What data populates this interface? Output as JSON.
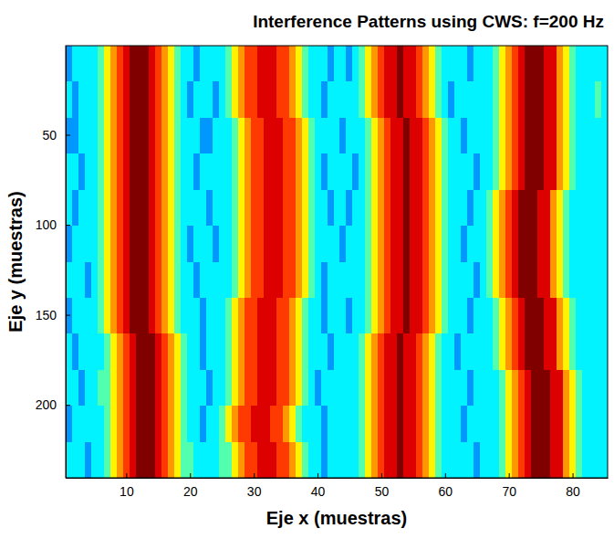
{
  "chart_data": {
    "type": "heatmap",
    "title": "Interference Patterns using CWS: f=200 Hz",
    "x_label": "Eje x (muestras)",
    "y_label": "Eje y (muestras)",
    "color": "jet",
    "zlim": [
      0,
      11
    ],
    "xlim": [
      0.5,
      85.5
    ],
    "ylim": [
      0.5,
      240.5
    ],
    "xticks": [
      10,
      20,
      30,
      40,
      50,
      60,
      70,
      80
    ],
    "yticks": [
      50,
      100,
      150,
      200
    ],
    "x": [
      1,
      2,
      3,
      4,
      5,
      6,
      7,
      8,
      9,
      10,
      11,
      12,
      13,
      14,
      15,
      16,
      17,
      18,
      19,
      20,
      21,
      22,
      23,
      24,
      25,
      26,
      27,
      28,
      29,
      30,
      31,
      32,
      33,
      34,
      35,
      36,
      37,
      38,
      39,
      40,
      41,
      42,
      43,
      44,
      45,
      46,
      47,
      48,
      49,
      50,
      51,
      52,
      53,
      54,
      55,
      56,
      57,
      58,
      59,
      60,
      61,
      62,
      63,
      64,
      65,
      66,
      67,
      68,
      69,
      70,
      71,
      72,
      73,
      74,
      75,
      76,
      77,
      78,
      79,
      80,
      81,
      82,
      83,
      84,
      85
    ],
    "y": [
      10.5,
      30.5,
      50.5,
      70.5,
      90.5,
      110.5,
      130.5,
      150.5,
      170.5,
      190.5,
      210.5,
      230.5
    ],
    "cells": [
      [
        3,
        4,
        4,
        4,
        4,
        5,
        7,
        8,
        9,
        10,
        11,
        11,
        11,
        10,
        9,
        8,
        7,
        5,
        4,
        4,
        3,
        4,
        4,
        4,
        4,
        5,
        7,
        8,
        9,
        9,
        10,
        10,
        10,
        9,
        9,
        8,
        7,
        5,
        4,
        4,
        4,
        3,
        4,
        4,
        3,
        4,
        5,
        7,
        8,
        9,
        10,
        10,
        11,
        10,
        10,
        9,
        8,
        7,
        5,
        4,
        4,
        4,
        4,
        3,
        4,
        4,
        4,
        5,
        7,
        8,
        9,
        10,
        11,
        11,
        11,
        10,
        10,
        8,
        7,
        5,
        4,
        4,
        4,
        4,
        4
      ],
      [
        4,
        3,
        4,
        4,
        4,
        5,
        7,
        8,
        9,
        10,
        11,
        11,
        11,
        10,
        9,
        8,
        7,
        5,
        4,
        3,
        4,
        4,
        4,
        3,
        4,
        5,
        7,
        8,
        9,
        9,
        10,
        10,
        10,
        9,
        9,
        8,
        7,
        5,
        4,
        4,
        3,
        4,
        4,
        4,
        4,
        4,
        5,
        7,
        8,
        9,
        10,
        10,
        11,
        10,
        10,
        9,
        8,
        7,
        5,
        4,
        3,
        4,
        4,
        4,
        4,
        4,
        4,
        5,
        7,
        8,
        9,
        10,
        11,
        11,
        11,
        10,
        10,
        8,
        7,
        5,
        4,
        4,
        4,
        5,
        4
      ],
      [
        3,
        3,
        4,
        4,
        4,
        5,
        7,
        8,
        9,
        10,
        11,
        11,
        11,
        10,
        9,
        8,
        7,
        5,
        4,
        4,
        4,
        3,
        3,
        4,
        4,
        4,
        5,
        7,
        8,
        9,
        9,
        10,
        10,
        10,
        9,
        9,
        8,
        7,
        5,
        4,
        4,
        4,
        4,
        3,
        4,
        4,
        4,
        5,
        7,
        8,
        9,
        10,
        10,
        11,
        10,
        10,
        9,
        8,
        7,
        5,
        4,
        4,
        3,
        4,
        4,
        4,
        4,
        5,
        7,
        8,
        9,
        10,
        11,
        11,
        11,
        10,
        10,
        8,
        7,
        5,
        4,
        4,
        4,
        4,
        4
      ],
      [
        4,
        4,
        3,
        4,
        4,
        5,
        7,
        8,
        9,
        10,
        11,
        11,
        11,
        10,
        9,
        8,
        7,
        5,
        4,
        4,
        3,
        4,
        4,
        4,
        4,
        4,
        5,
        7,
        8,
        9,
        9,
        10,
        10,
        10,
        9,
        9,
        8,
        7,
        5,
        4,
        3,
        4,
        4,
        4,
        4,
        3,
        4,
        5,
        7,
        8,
        9,
        10,
        10,
        11,
        10,
        10,
        9,
        8,
        7,
        5,
        4,
        4,
        4,
        4,
        3,
        4,
        4,
        5,
        7,
        8,
        9,
        10,
        11,
        11,
        11,
        10,
        10,
        8,
        7,
        5,
        4,
        4,
        4,
        4,
        4
      ],
      [
        4,
        3,
        4,
        4,
        4,
        5,
        7,
        8,
        9,
        10,
        11,
        11,
        11,
        10,
        9,
        8,
        7,
        5,
        4,
        4,
        4,
        4,
        3,
        4,
        4,
        4,
        5,
        7,
        8,
        9,
        9,
        10,
        10,
        10,
        9,
        9,
        8,
        7,
        5,
        4,
        4,
        3,
        4,
        4,
        3,
        4,
        4,
        5,
        7,
        8,
        9,
        10,
        10,
        11,
        10,
        10,
        9,
        8,
        7,
        5,
        4,
        4,
        4,
        3,
        4,
        4,
        5,
        7,
        8,
        9,
        10,
        11,
        11,
        11,
        10,
        10,
        8,
        7,
        5,
        4,
        4,
        4,
        4,
        4,
        4
      ],
      [
        3,
        4,
        4,
        4,
        4,
        5,
        7,
        8,
        9,
        10,
        11,
        11,
        11,
        10,
        9,
        8,
        7,
        5,
        4,
        3,
        4,
        4,
        4,
        3,
        4,
        4,
        5,
        7,
        8,
        9,
        9,
        10,
        10,
        10,
        9,
        9,
        8,
        7,
        5,
        4,
        4,
        4,
        4,
        3,
        4,
        4,
        4,
        5,
        7,
        8,
        9,
        10,
        10,
        11,
        10,
        10,
        9,
        8,
        7,
        5,
        4,
        4,
        3,
        4,
        4,
        4,
        5,
        7,
        8,
        9,
        10,
        11,
        11,
        11,
        10,
        10,
        8,
        7,
        5,
        4,
        4,
        4,
        4,
        4,
        4
      ],
      [
        4,
        4,
        4,
        3,
        4,
        5,
        7,
        8,
        9,
        10,
        11,
        11,
        11,
        10,
        9,
        8,
        7,
        5,
        4,
        4,
        3,
        4,
        4,
        4,
        4,
        4,
        5,
        7,
        8,
        9,
        9,
        10,
        10,
        10,
        9,
        9,
        8,
        7,
        5,
        4,
        3,
        4,
        4,
        4,
        4,
        4,
        4,
        5,
        7,
        8,
        9,
        10,
        10,
        11,
        10,
        10,
        9,
        8,
        7,
        5,
        4,
        4,
        4,
        4,
        3,
        4,
        5,
        7,
        8,
        9,
        10,
        11,
        11,
        11,
        10,
        10,
        8,
        7,
        5,
        4,
        4,
        4,
        4,
        4,
        4
      ],
      [
        3,
        4,
        4,
        4,
        4,
        5,
        7,
        8,
        9,
        10,
        11,
        11,
        11,
        10,
        9,
        8,
        7,
        5,
        4,
        4,
        4,
        3,
        4,
        4,
        4,
        5,
        7,
        8,
        9,
        9,
        10,
        10,
        10,
        9,
        9,
        8,
        7,
        5,
        4,
        4,
        3,
        4,
        4,
        4,
        3,
        4,
        4,
        5,
        7,
        8,
        9,
        10,
        10,
        11,
        10,
        10,
        9,
        8,
        7,
        5,
        4,
        4,
        4,
        3,
        4,
        4,
        4,
        5,
        7,
        8,
        9,
        10,
        11,
        11,
        11,
        10,
        10,
        8,
        7,
        5,
        4,
        4,
        4,
        4,
        4
      ],
      [
        4,
        3,
        4,
        4,
        4,
        4,
        5,
        7,
        8,
        9,
        10,
        11,
        11,
        11,
        10,
        9,
        8,
        7,
        5,
        4,
        4,
        3,
        4,
        4,
        4,
        5,
        7,
        8,
        9,
        9,
        10,
        10,
        10,
        9,
        9,
        8,
        7,
        5,
        4,
        4,
        4,
        3,
        4,
        4,
        4,
        4,
        5,
        7,
        8,
        9,
        10,
        10,
        11,
        10,
        10,
        9,
        8,
        7,
        5,
        4,
        4,
        3,
        4,
        4,
        4,
        4,
        4,
        5,
        7,
        8,
        9,
        10,
        11,
        11,
        11,
        10,
        10,
        8,
        7,
        5,
        4,
        4,
        4,
        4,
        4
      ],
      [
        4,
        4,
        3,
        4,
        4,
        5,
        5,
        7,
        8,
        9,
        10,
        11,
        11,
        11,
        10,
        9,
        8,
        7,
        5,
        4,
        4,
        4,
        3,
        4,
        4,
        5,
        7,
        8,
        9,
        9,
        10,
        10,
        10,
        9,
        9,
        8,
        7,
        5,
        4,
        3,
        4,
        4,
        4,
        4,
        4,
        4,
        5,
        7,
        8,
        9,
        10,
        10,
        11,
        10,
        10,
        9,
        8,
        7,
        5,
        4,
        4,
        4,
        4,
        3,
        4,
        4,
        4,
        4,
        5,
        7,
        8,
        9,
        10,
        11,
        11,
        11,
        10,
        10,
        8,
        7,
        5,
        4,
        4,
        4,
        4
      ],
      [
        3,
        4,
        4,
        4,
        4,
        4,
        5,
        7,
        8,
        9,
        10,
        11,
        11,
        11,
        10,
        9,
        8,
        7,
        5,
        4,
        4,
        3,
        4,
        4,
        5,
        7,
        8,
        9,
        9,
        10,
        10,
        10,
        9,
        9,
        8,
        7,
        5,
        4,
        4,
        4,
        3,
        4,
        4,
        4,
        4,
        4,
        5,
        7,
        8,
        9,
        10,
        10,
        11,
        10,
        10,
        9,
        8,
        7,
        5,
        4,
        4,
        4,
        3,
        4,
        4,
        4,
        4,
        4,
        5,
        7,
        8,
        9,
        10,
        11,
        11,
        11,
        10,
        10,
        8,
        7,
        5,
        4,
        4,
        4,
        4
      ],
      [
        4,
        4,
        4,
        3,
        4,
        4,
        5,
        7,
        8,
        9,
        10,
        11,
        11,
        11,
        10,
        9,
        8,
        7,
        5,
        5,
        4,
        4,
        4,
        4,
        5,
        5,
        7,
        8,
        9,
        9,
        10,
        10,
        10,
        9,
        9,
        8,
        7,
        5,
        4,
        4,
        3,
        4,
        4,
        4,
        4,
        4,
        5,
        7,
        8,
        9,
        10,
        10,
        11,
        10,
        10,
        9,
        8,
        7,
        5,
        4,
        4,
        4,
        4,
        4,
        3,
        4,
        4,
        4,
        5,
        7,
        8,
        9,
        10,
        11,
        11,
        11,
        10,
        10,
        8,
        7,
        5,
        4,
        4,
        4,
        4
      ]
    ]
  }
}
